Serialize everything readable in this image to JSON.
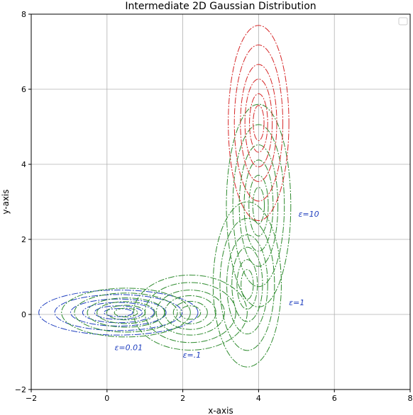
{
  "chart_data": {
    "type": "line",
    "title": "Intermediate 2D Gaussian Distribution",
    "xlabel": "x-axis",
    "ylabel": "y-axis",
    "xlim": [
      -2,
      8
    ],
    "ylim": [
      -2,
      8
    ],
    "xticks": [
      "−2",
      "0",
      "2",
      "4",
      "6",
      "8"
    ],
    "yticks": [
      "−2",
      "0",
      "2",
      "4",
      "6",
      "8"
    ],
    "xtick_values": [
      -2,
      0,
      2,
      4,
      6,
      8
    ],
    "ytick_values": [
      -2,
      0,
      2,
      4,
      6,
      8
    ],
    "grid": true,
    "legend": {
      "placement": "top-right",
      "entries": []
    },
    "contour_scales": [
      1,
      0.8,
      0.6,
      0.45,
      0.3,
      0.18
    ],
    "series": [
      {
        "color": "#1f3fbf",
        "ellipses": [
          {
            "center": [
              0.3,
              0.05
            ],
            "semi_axes": [
              2.1,
              0.6
            ]
          }
        ]
      },
      {
        "color": "#2e8b2e",
        "ellipses": [
          {
            "center": [
              0.5,
              0.05
            ],
            "semi_axes": [
              1.7,
              0.65
            ]
          },
          {
            "center": [
              2.2,
              0.05
            ],
            "semi_axes": [
              1.5,
              1.0
            ]
          },
          {
            "center": [
              3.7,
              0.8
            ],
            "semi_axes": [
              0.9,
              2.2
            ]
          },
          {
            "center": [
              4.0,
              2.9
            ],
            "semi_axes": [
              0.85,
              2.7
            ]
          }
        ]
      },
      {
        "color": "#d62728",
        "ellipses": [
          {
            "center": [
              4.0,
              5.1
            ],
            "semi_axes": [
              0.8,
              2.6
            ]
          }
        ]
      }
    ],
    "annotations": [
      {
        "text": "ε=0.01",
        "x": 0.2,
        "y": -0.95,
        "color": "#1f3fbf"
      },
      {
        "text": "ε=.1",
        "x": 2.0,
        "y": -1.15,
        "color": "#1f3fbf"
      },
      {
        "text": "ε=1",
        "x": 4.8,
        "y": 0.25,
        "color": "#1f3fbf"
      },
      {
        "text": "ε=10",
        "x": 5.05,
        "y": 2.6,
        "color": "#1f3fbf"
      }
    ]
  }
}
